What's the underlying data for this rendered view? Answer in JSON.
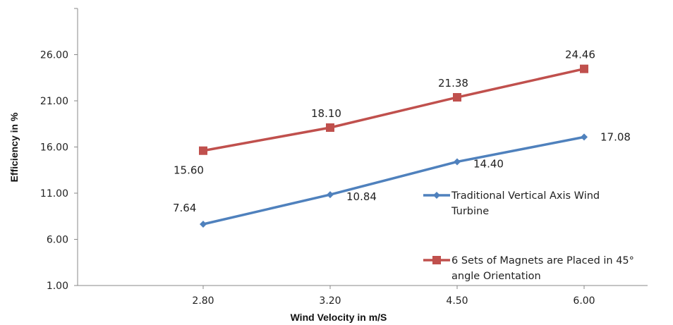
{
  "chart_data": {
    "type": "line",
    "title": "",
    "xlabel": "Wind Velocity in m/S",
    "ylabel": "Efficiency in %",
    "categories": [
      "2.80",
      "3.20",
      "4.50",
      "6.00"
    ],
    "y_ticks": [
      "1.00",
      "6.00",
      "11.00",
      "16.00",
      "21.00",
      "26.00"
    ],
    "ylim": [
      1,
      31
    ],
    "grid": false,
    "legend_position": "right",
    "series": [
      {
        "name": "Traditional Vertical Axis Wind Turbine",
        "name_lines": [
          "Traditional Vertical Axis Wind",
          "Turbine"
        ],
        "values": [
          7.64,
          10.84,
          14.4,
          17.08
        ],
        "labels": [
          "7.64",
          "10.84",
          "14.40",
          "17.08"
        ],
        "color": "#4F81BD",
        "marker": "diamond"
      },
      {
        "name": "6 Sets of Magnets are Placed in 45° angle Orientation",
        "name_lines": [
          "6 Sets of Magnets are Placed in 45°",
          "angle Orientation"
        ],
        "values": [
          15.6,
          18.1,
          21.38,
          24.46
        ],
        "labels": [
          "15.60",
          "18.10",
          "21.38",
          "24.46"
        ],
        "color": "#C0504D",
        "marker": "square"
      }
    ]
  }
}
